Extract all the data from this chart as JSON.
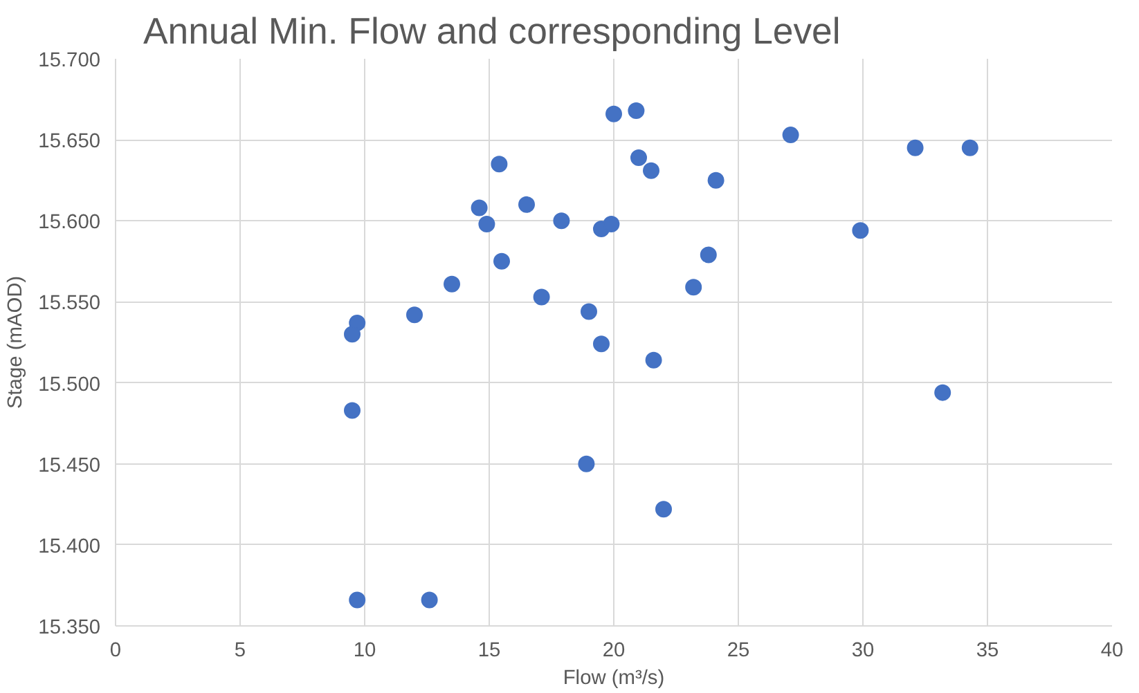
{
  "chart_data": {
    "type": "scatter",
    "title": "Annual Min. Flow and corresponding Level",
    "xlabel": "Flow (m³/s)",
    "ylabel": "Stage (mAOD)",
    "x": [
      9.7,
      9.5,
      9.5,
      9.7,
      12.6,
      12.0,
      13.5,
      14.6,
      14.9,
      15.4,
      15.5,
      16.5,
      17.1,
      17.9,
      19.0,
      18.9,
      19.5,
      19.5,
      19.9,
      20.0,
      20.9,
      21.0,
      21.5,
      21.6,
      22.0,
      23.2,
      23.8,
      24.1,
      27.1,
      29.9,
      32.1,
      33.2,
      34.3
    ],
    "series": [
      {
        "color": "#4472c4",
        "values": [
          15.537,
          15.53,
          15.483,
          15.366,
          15.366,
          15.542,
          15.561,
          15.608,
          15.598,
          15.635,
          15.575,
          15.61,
          15.553,
          15.6,
          15.544,
          15.45,
          15.524,
          15.595,
          15.598,
          15.666,
          15.668,
          15.639,
          15.631,
          15.514,
          15.422,
          15.559,
          15.579,
          15.625,
          15.653,
          15.594,
          15.645,
          15.494,
          15.645
        ]
      }
    ],
    "xlim": [
      0,
      40
    ],
    "xticks": [
      0,
      5,
      10,
      15,
      20,
      25,
      30,
      35,
      40
    ],
    "ylim": [
      15.35,
      15.7
    ],
    "yticks": [
      {
        "value": 15.35,
        "label": "15.350"
      },
      {
        "value": 15.4,
        "label": "15.400"
      },
      {
        "value": 15.45,
        "label": "15.450"
      },
      {
        "value": 15.5,
        "label": "15.500"
      },
      {
        "value": 15.55,
        "label": "15.550"
      },
      {
        "value": 15.6,
        "label": "15.600"
      },
      {
        "value": 15.65,
        "label": "15.650"
      },
      {
        "value": 15.7,
        "label": "15.700"
      }
    ],
    "grid": true,
    "marker": "circle"
  }
}
